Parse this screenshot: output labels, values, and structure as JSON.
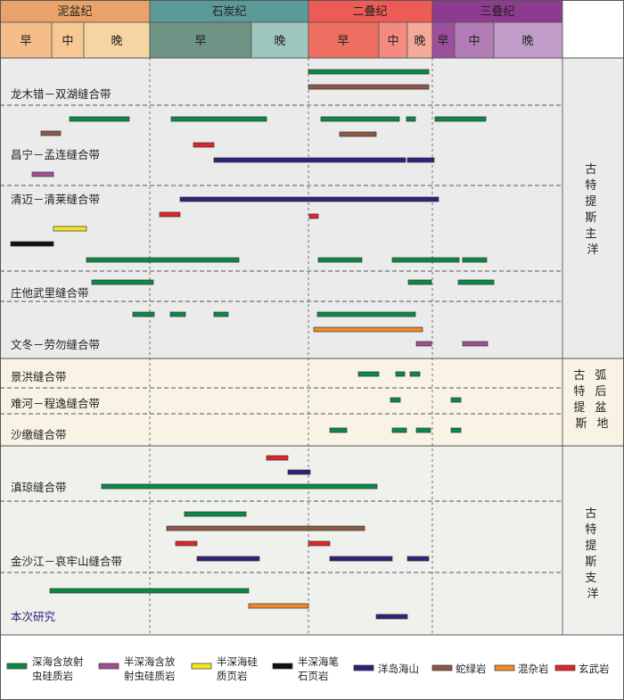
{
  "colors": {
    "deep_sea_radiolarian_chert": "#0b8a45",
    "semi_deep_radiolarian_chert": "#a0508f",
    "semi_deep_siliceous_shale": "#f4e624",
    "semi_deep_graptolite_shale": "#111111",
    "oceanic_island_seamount": "#2e237a",
    "ophiolite": "#8b5a46",
    "melange": "#ef8a2c",
    "basalt": "#e0262b"
  },
  "periods": [
    {
      "name": "泥盆纪",
      "color": "#e9a36a",
      "epochs": [
        {
          "name": "早",
          "color": "#f4bd8a"
        },
        {
          "name": "中",
          "color": "#f7c892"
        },
        {
          "name": "晚",
          "color": "#f5d6a2"
        }
      ]
    },
    {
      "name": "石炭纪",
      "color": "#5b9a98",
      "epochs": [
        {
          "name": "早",
          "color": "#6f9384"
        },
        {
          "name": "晚",
          "color": "#9fc7c0"
        }
      ]
    },
    {
      "name": "二叠纪",
      "color": "#ec5b55",
      "epochs": [
        {
          "name": "早",
          "color": "#ef6e62"
        },
        {
          "name": "中",
          "color": "#f48b80"
        },
        {
          "name": "晚",
          "color": "#f6a99b"
        }
      ]
    },
    {
      "name": "三叠纪",
      "color": "#8d3b8f",
      "epochs": [
        {
          "name": "早",
          "color": "#9b4f9d"
        },
        {
          "name": "中",
          "color": "#b27cb6"
        },
        {
          "name": "晚",
          "color": "#c29cc8"
        }
      ]
    }
  ],
  "sections": [
    {
      "label": [
        "古",
        "特",
        "提",
        "斯",
        "主",
        "洋"
      ],
      "bg": "#ebebec"
    },
    {
      "label": [
        "古",
        "特",
        "提",
        "斯"
      ],
      "label2": [
        "弧",
        "后",
        "盆",
        "地"
      ],
      "bg": "#f8f3e4"
    },
    {
      "label": [
        "古",
        "特",
        "提",
        "斯",
        "支",
        "洋"
      ],
      "bg": "#eef1ec"
    }
  ],
  "belts": [
    "龙木错－双湖缝合带",
    "昌宁－孟连缝合带",
    "清迈－清莱缝合带",
    "庄他武里缝合带",
    "文冬－劳勿缝合带",
    "景洪缝合带",
    "难河－程逸缝合带",
    "沙缴缝合带",
    "滇琼缝合带",
    "金沙江－哀牢山缝合带",
    "本次研究"
  ],
  "legend": [
    {
      "key": "deep_sea_radiolarian_chert",
      "lines": [
        "深海含放射",
        "虫硅质岩"
      ]
    },
    {
      "key": "semi_deep_radiolarian_chert",
      "lines": [
        "半深海含放",
        "射虫硅质岩"
      ]
    },
    {
      "key": "semi_deep_siliceous_shale",
      "lines": [
        "半深海硅",
        "质页岩"
      ]
    },
    {
      "key": "semi_deep_graptolite_shale",
      "lines": [
        "半深海笔",
        "石页岩"
      ]
    },
    {
      "key": "oceanic_island_seamount",
      "lines": [
        "洋岛海山"
      ]
    },
    {
      "key": "ophiolite",
      "lines": [
        "蛇绿岩"
      ]
    },
    {
      "key": "melange",
      "lines": [
        "混杂岩"
      ]
    },
    {
      "key": "basalt",
      "lines": [
        "玄武岩"
      ]
    }
  ]
}
